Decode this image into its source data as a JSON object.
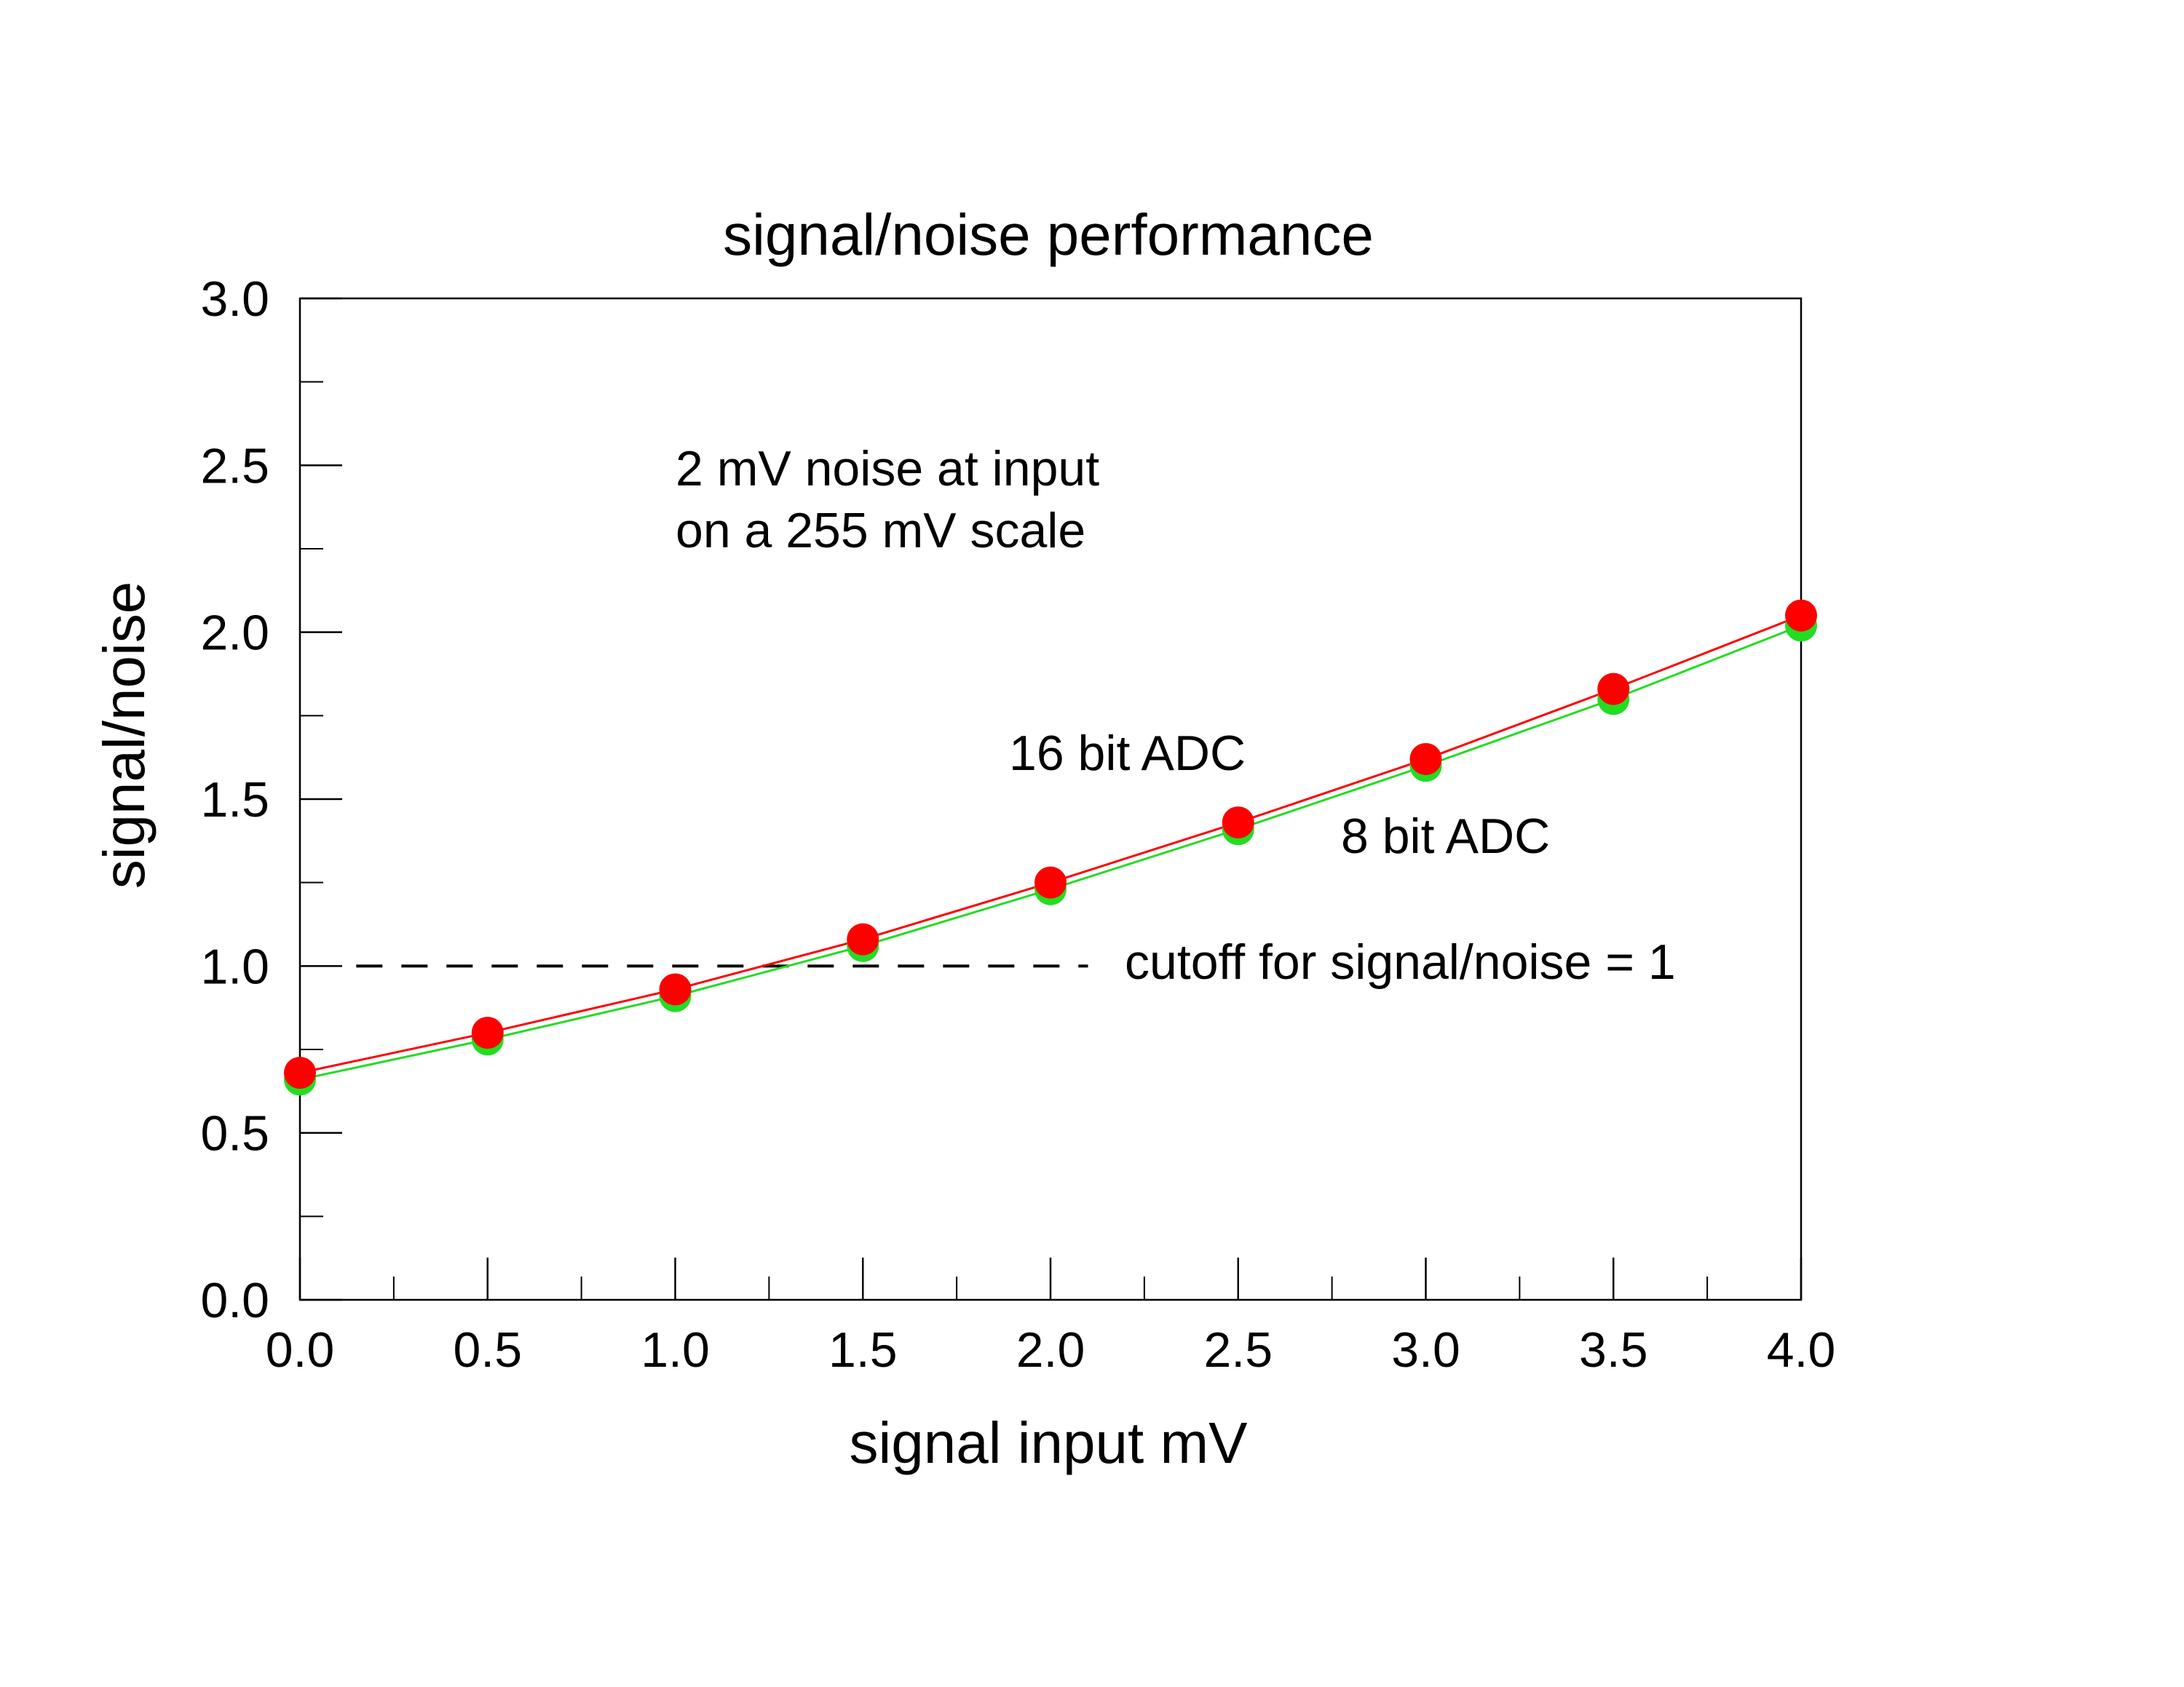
{
  "chart_data": {
    "type": "scatter",
    "title": "signal/noise performance",
    "xlabel": "signal input mV",
    "ylabel": "signal/noise",
    "xlim": [
      0,
      4
    ],
    "ylim": [
      0,
      3
    ],
    "x_ticks": [
      0.0,
      0.5,
      1.0,
      1.5,
      2.0,
      2.5,
      3.0,
      3.5,
      4.0
    ],
    "x_tick_labels": [
      "0.0",
      "0.5",
      "1.0",
      "1.5",
      "2.0",
      "2.5",
      "3.0",
      "3.5",
      "4.0"
    ],
    "y_ticks": [
      0.0,
      0.5,
      1.0,
      1.5,
      2.0,
      2.5,
      3.0
    ],
    "y_tick_labels": [
      "0.0",
      "0.5",
      "1.0",
      "1.5",
      "2.0",
      "2.5",
      "3.0"
    ],
    "grid": false,
    "legend": "none",
    "series": [
      {
        "name": "8 bit ADC",
        "color": "#22dd22",
        "x": [
          0.0,
          0.5,
          1.0,
          1.5,
          2.0,
          2.5,
          3.0,
          3.5,
          4.0
        ],
        "y": [
          0.66,
          0.78,
          0.91,
          1.06,
          1.23,
          1.41,
          1.6,
          1.8,
          2.02
        ]
      },
      {
        "name": "16 bit ADC",
        "color": "#ff0000",
        "x": [
          0.0,
          0.5,
          1.0,
          1.5,
          2.0,
          2.5,
          3.0,
          3.5,
          4.0
        ],
        "y": [
          0.68,
          0.8,
          0.93,
          1.08,
          1.25,
          1.43,
          1.62,
          1.83,
          2.05
        ]
      }
    ],
    "cutoff": {
      "y": 1.0,
      "x_start": 0.15,
      "x_end": 2.1,
      "label": "cutoff for signal/noise = 1"
    },
    "annotations": {
      "noise_line1": "2 mV noise at input",
      "noise_line2": "on a 255 mV scale",
      "label_16bit": "16 bit ADC",
      "label_8bit": "8 bit ADC"
    }
  }
}
